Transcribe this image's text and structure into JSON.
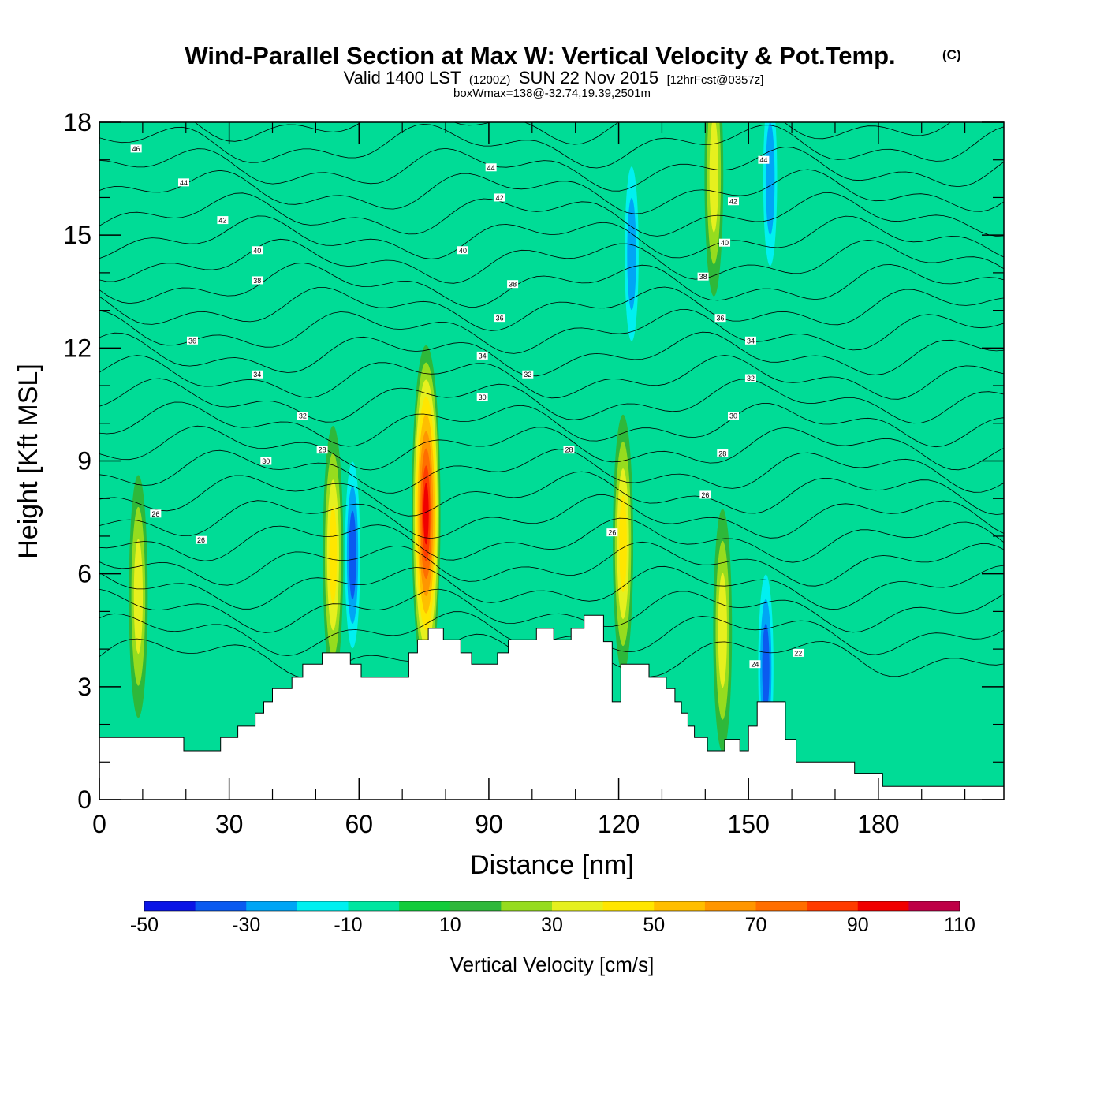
{
  "title": {
    "main": "Wind-Parallel Section at Max W: Vertical Velocity & Pot.Temp.",
    "mark": "(C)",
    "sub_part1": "Valid 1400 LST",
    "sub_part2": "(1200Z)",
    "sub_part3": "SUN 22 Nov 2015",
    "sub_part4": "[12hrFcst@0357z]",
    "sub_line2": "boxWmax=138@-32.74,19.39,2501m"
  },
  "chart_data": {
    "type": "heatmap",
    "xlabel": "Distance [nm]",
    "ylabel": "Height [Kft MSL]",
    "xlim": [
      0,
      209
    ],
    "ylim": [
      0,
      18
    ],
    "x_ticks": [
      0,
      30,
      60,
      90,
      120,
      150,
      180
    ],
    "y_ticks": [
      0,
      3,
      6,
      9,
      12,
      15,
      18
    ],
    "colorbar": {
      "title": "Vertical Velocity [cm/s]",
      "boundaries": [
        -50,
        -40,
        -30,
        -20,
        -10,
        0,
        10,
        20,
        30,
        40,
        50,
        60,
        70,
        80,
        90,
        100,
        110
      ],
      "labels": [
        -50,
        -30,
        -10,
        10,
        30,
        50,
        70,
        90,
        110
      ],
      "colors": [
        "#0a14e6",
        "#0a5af0",
        "#00a5f5",
        "#00f0f0",
        "#00e6a0",
        "#12cc3a",
        "#2eb83a",
        "#96dc1e",
        "#e6f01e",
        "#ffe600",
        "#ffbe00",
        "#ff9600",
        "#ff6e00",
        "#ff3c00",
        "#f00000",
        "#be0046"
      ]
    },
    "background_color": "#00dc96",
    "updraft_cores": [
      {
        "x": 9,
        "z": 5.4,
        "w": 32
      },
      {
        "x": 54,
        "z": 6.5,
        "w": 44
      },
      {
        "x": 75.5,
        "z": 7.6,
        "w": 100
      },
      {
        "x": 121,
        "z": 6.8,
        "w": 42
      },
      {
        "x": 144,
        "z": 4.5,
        "w": 36
      },
      {
        "x": 142,
        "z": 16.6,
        "w": 38
      }
    ],
    "downdraft_cores": [
      {
        "x": 58.5,
        "z": 6.5,
        "w": -40
      },
      {
        "x": 123,
        "z": 14.5,
        "w": -30
      },
      {
        "x": 154,
        "z": 3.5,
        "w": -40
      },
      {
        "x": 155,
        "z": 16.5,
        "w": -30
      }
    ],
    "theta_contours": {
      "count": 24,
      "labels": [
        {
          "text": "46",
          "x": 8.5,
          "z": 17.3
        },
        {
          "text": "44",
          "x": 19.5,
          "z": 16.4
        },
        {
          "text": "42",
          "x": 28.5,
          "z": 15.4
        },
        {
          "text": "40",
          "x": 36.5,
          "z": 14.6
        },
        {
          "text": "38",
          "x": 36.5,
          "z": 13.8
        },
        {
          "text": "36",
          "x": 21.5,
          "z": 12.2
        },
        {
          "text": "34",
          "x": 36.5,
          "z": 11.3
        },
        {
          "text": "32",
          "x": 47,
          "z": 10.2
        },
        {
          "text": "30",
          "x": 38.5,
          "z": 9.0
        },
        {
          "text": "28",
          "x": 51.5,
          "z": 9.3
        },
        {
          "text": "26",
          "x": 13,
          "z": 7.6
        },
        {
          "text": "26",
          "x": 23.5,
          "z": 6.9
        },
        {
          "text": "44",
          "x": 90.5,
          "z": 16.8
        },
        {
          "text": "42",
          "x": 92.5,
          "z": 16.0
        },
        {
          "text": "40",
          "x": 84,
          "z": 14.6
        },
        {
          "text": "38",
          "x": 95.5,
          "z": 13.7
        },
        {
          "text": "36",
          "x": 92.5,
          "z": 12.8
        },
        {
          "text": "34",
          "x": 88.5,
          "z": 11.8
        },
        {
          "text": "32",
          "x": 99,
          "z": 11.3
        },
        {
          "text": "30",
          "x": 88.5,
          "z": 10.7
        },
        {
          "text": "28",
          "x": 108.5,
          "z": 9.3
        },
        {
          "text": "26",
          "x": 118.5,
          "z": 7.1
        },
        {
          "text": "44",
          "x": 153.5,
          "z": 17.0
        },
        {
          "text": "42",
          "x": 146.5,
          "z": 15.9
        },
        {
          "text": "40",
          "x": 144.5,
          "z": 14.8
        },
        {
          "text": "38",
          "x": 139.5,
          "z": 13.9
        },
        {
          "text": "36",
          "x": 143.5,
          "z": 12.8
        },
        {
          "text": "34",
          "x": 150.5,
          "z": 12.2
        },
        {
          "text": "32",
          "x": 150.5,
          "z": 11.2
        },
        {
          "text": "30",
          "x": 146.5,
          "z": 10.2
        },
        {
          "text": "28",
          "x": 144,
          "z": 9.2
        },
        {
          "text": "26",
          "x": 140,
          "z": 8.1
        },
        {
          "text": "24",
          "x": 151.5,
          "z": 3.6
        },
        {
          "text": "22",
          "x": 161.5,
          "z": 3.9
        }
      ]
    },
    "terrain": [
      [
        0,
        1.65
      ],
      [
        19.5,
        1.65
      ],
      [
        19.5,
        1.3
      ],
      [
        28,
        1.3
      ],
      [
        28,
        1.65
      ],
      [
        32,
        1.65
      ],
      [
        32,
        1.95
      ],
      [
        36,
        1.95
      ],
      [
        36,
        2.3
      ],
      [
        38,
        2.3
      ],
      [
        38,
        2.6
      ],
      [
        40,
        2.6
      ],
      [
        40,
        2.95
      ],
      [
        44.5,
        2.95
      ],
      [
        44.5,
        3.25
      ],
      [
        47,
        3.25
      ],
      [
        47,
        3.6
      ],
      [
        51.5,
        3.6
      ],
      [
        51.5,
        3.9
      ],
      [
        58,
        3.9
      ],
      [
        58,
        3.6
      ],
      [
        60.5,
        3.6
      ],
      [
        60.5,
        3.25
      ],
      [
        71.5,
        3.25
      ],
      [
        71.5,
        3.9
      ],
      [
        73.5,
        3.9
      ],
      [
        73.5,
        4.25
      ],
      [
        76,
        4.25
      ],
      [
        76,
        4.55
      ],
      [
        79.5,
        4.55
      ],
      [
        79.5,
        4.25
      ],
      [
        83.5,
        4.25
      ],
      [
        83.5,
        3.9
      ],
      [
        86,
        3.9
      ],
      [
        86,
        3.6
      ],
      [
        92,
        3.6
      ],
      [
        92,
        3.9
      ],
      [
        94.5,
        3.9
      ],
      [
        94.5,
        4.25
      ],
      [
        101,
        4.25
      ],
      [
        101,
        4.55
      ],
      [
        105,
        4.55
      ],
      [
        105,
        4.25
      ],
      [
        109,
        4.25
      ],
      [
        109,
        4.55
      ],
      [
        112,
        4.55
      ],
      [
        112,
        4.9
      ],
      [
        116.5,
        4.9
      ],
      [
        116.5,
        4.2
      ],
      [
        118.5,
        4.2
      ],
      [
        118.5,
        2.6
      ],
      [
        120.5,
        2.6
      ],
      [
        120.5,
        3.6
      ],
      [
        127,
        3.6
      ],
      [
        127,
        3.25
      ],
      [
        131,
        3.25
      ],
      [
        131,
        2.95
      ],
      [
        133,
        2.95
      ],
      [
        133,
        2.6
      ],
      [
        134.5,
        2.6
      ],
      [
        134.5,
        2.3
      ],
      [
        136,
        2.3
      ],
      [
        136,
        1.95
      ],
      [
        137.5,
        1.95
      ],
      [
        137.5,
        1.65
      ],
      [
        140.5,
        1.65
      ],
      [
        140.5,
        1.3
      ],
      [
        144.5,
        1.3
      ],
      [
        144.5,
        1.6
      ],
      [
        148,
        1.6
      ],
      [
        148,
        1.3
      ],
      [
        150,
        1.3
      ],
      [
        150,
        1.95
      ],
      [
        152,
        1.95
      ],
      [
        152,
        2.6
      ],
      [
        158.5,
        2.6
      ],
      [
        158.5,
        1.6
      ],
      [
        161,
        1.6
      ],
      [
        161,
        1.0
      ],
      [
        174.5,
        1.0
      ],
      [
        174.5,
        0.7
      ],
      [
        181,
        0.7
      ],
      [
        181,
        0.35
      ],
      [
        209,
        0.35
      ]
    ]
  }
}
